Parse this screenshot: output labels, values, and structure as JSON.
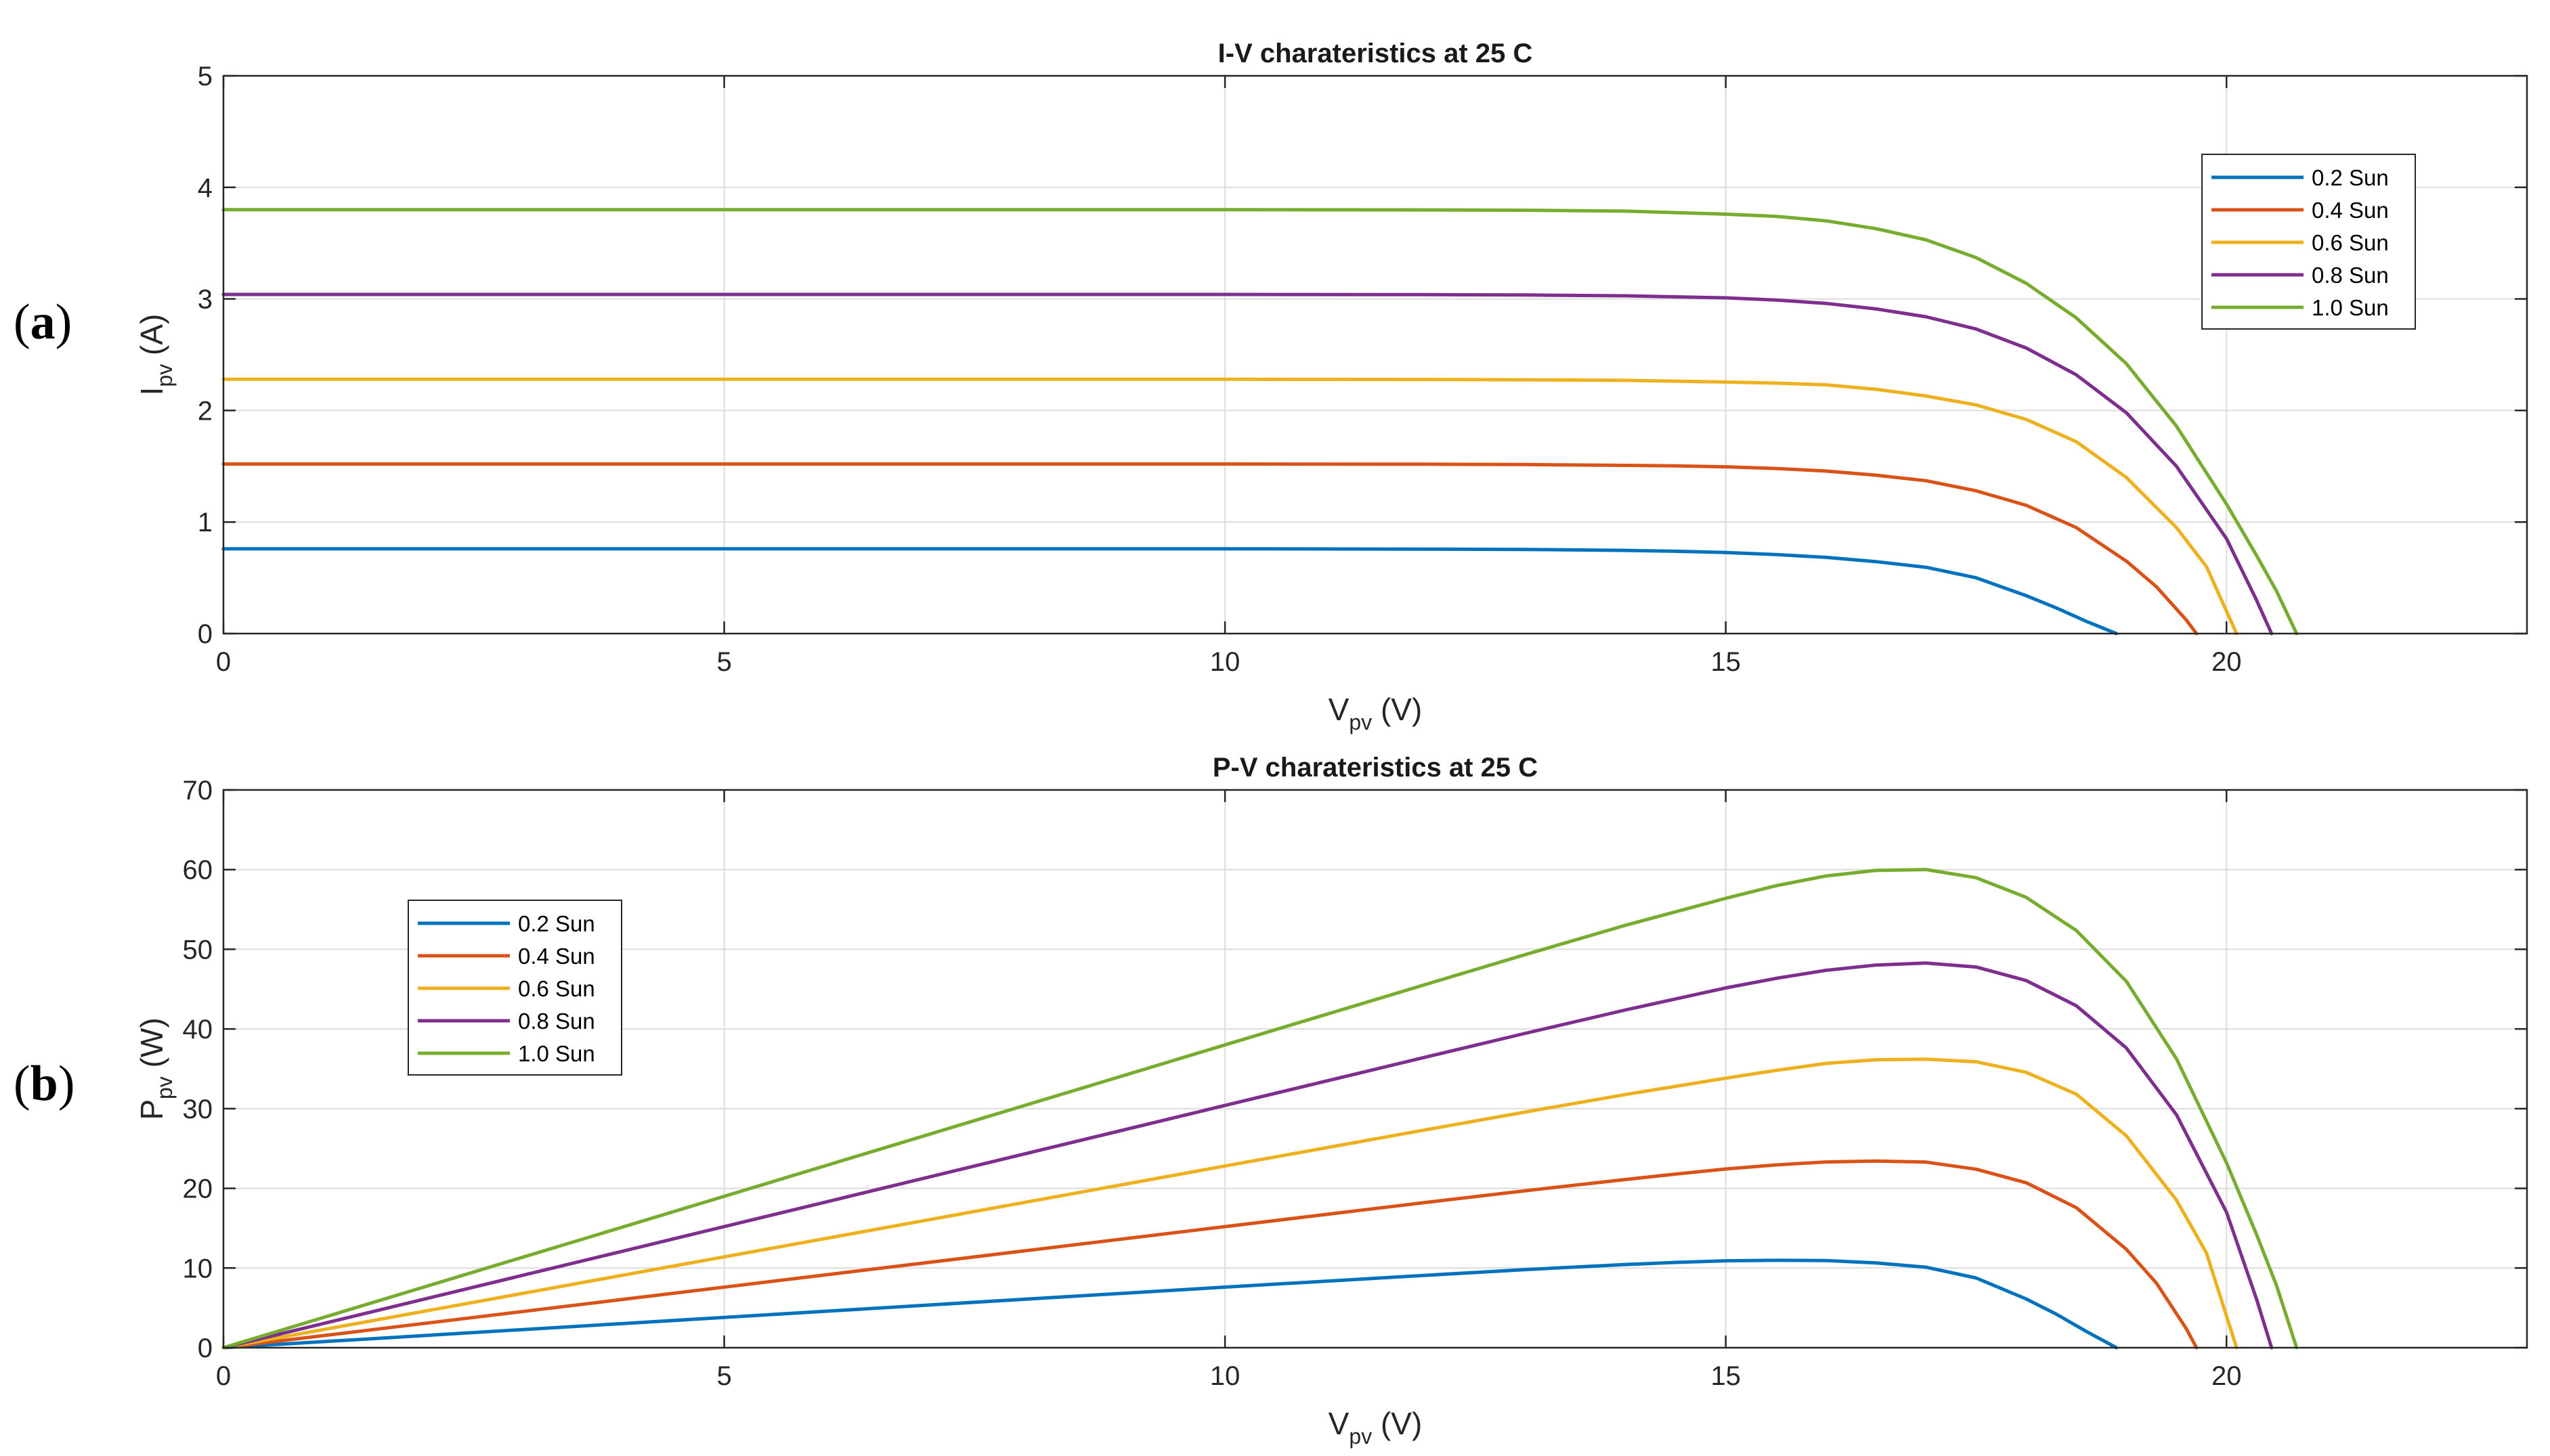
{
  "panels": [
    {
      "label_open": "(",
      "label_letter": "a",
      "label_close": ")"
    },
    {
      "label_open": "(",
      "label_letter": "b",
      "label_close": ")"
    }
  ],
  "chart_data": [
    {
      "type": "line",
      "title": "I-V charateristics at 25 C",
      "xlabel": {
        "main": "V",
        "sub": "pv",
        "unit": "(V)"
      },
      "ylabel": {
        "main": "I",
        "sub": "pv",
        "unit": "(A)"
      },
      "xlim": [
        0,
        23
      ],
      "ylim": [
        0,
        5
      ],
      "xticks": [
        0,
        5,
        10,
        15,
        20
      ],
      "yticks": [
        0,
        1,
        2,
        3,
        4,
        5
      ],
      "grid": true,
      "legend_position": "top-right",
      "series": [
        {
          "name": "0.2 Sun",
          "color": "#0072BD",
          "x": [
            0,
            2,
            4,
            6,
            8,
            10,
            12,
            13,
            14,
            14.5,
            15,
            15.5,
            16,
            16.5,
            17,
            17.5,
            18,
            18.3,
            18.6,
            18.9
          ],
          "y": [
            0.76,
            0.76,
            0.76,
            0.76,
            0.76,
            0.76,
            0.757,
            0.754,
            0.746,
            0.738,
            0.727,
            0.708,
            0.683,
            0.645,
            0.594,
            0.5,
            0.34,
            0.23,
            0.11,
            0.0
          ]
        },
        {
          "name": "0.4 Sun",
          "color": "#D95319",
          "x": [
            0,
            2,
            4,
            6,
            8,
            10,
            12,
            13,
            14,
            14.5,
            15,
            15.5,
            16,
            16.5,
            17,
            17.5,
            18,
            18.5,
            19,
            19.3,
            19.6,
            19.7
          ],
          "y": [
            1.52,
            1.52,
            1.52,
            1.52,
            1.52,
            1.52,
            1.518,
            1.515,
            1.508,
            1.503,
            1.495,
            1.48,
            1.457,
            1.42,
            1.37,
            1.28,
            1.15,
            0.95,
            0.65,
            0.42,
            0.12,
            0.0
          ]
        },
        {
          "name": "0.6 Sun",
          "color": "#EDB120",
          "x": [
            0,
            2,
            4,
            6,
            8,
            10,
            12,
            13,
            14,
            15,
            15.5,
            16,
            16.5,
            17,
            17.5,
            18,
            18.5,
            19,
            19.5,
            19.8,
            20.1
          ],
          "y": [
            2.28,
            2.28,
            2.28,
            2.28,
            2.28,
            2.28,
            2.278,
            2.275,
            2.27,
            2.255,
            2.245,
            2.23,
            2.19,
            2.13,
            2.05,
            1.92,
            1.72,
            1.4,
            0.95,
            0.6,
            0.0
          ]
        },
        {
          "name": "0.8 Sun",
          "color": "#7E2F8E",
          "x": [
            0,
            2,
            4,
            6,
            8,
            10,
            12,
            13,
            14,
            15,
            15.5,
            16,
            16.5,
            17,
            17.5,
            18,
            18.5,
            19,
            19.5,
            20,
            20.3,
            20.45
          ],
          "y": [
            3.04,
            3.04,
            3.04,
            3.04,
            3.04,
            3.04,
            3.038,
            3.035,
            3.028,
            3.01,
            2.99,
            2.96,
            2.91,
            2.84,
            2.73,
            2.56,
            2.32,
            1.98,
            1.5,
            0.85,
            0.3,
            0.0
          ]
        },
        {
          "name": "1.0 Sun",
          "color": "#77AC30",
          "x": [
            0,
            2,
            4,
            6,
            8,
            10,
            12,
            13,
            14,
            15,
            15.5,
            16,
            16.5,
            17,
            17.5,
            18,
            18.5,
            19,
            19.5,
            20,
            20.3,
            20.5,
            20.7
          ],
          "y": [
            3.8,
            3.8,
            3.8,
            3.8,
            3.8,
            3.8,
            3.798,
            3.795,
            3.787,
            3.76,
            3.74,
            3.7,
            3.63,
            3.53,
            3.37,
            3.14,
            2.83,
            2.42,
            1.86,
            1.16,
            0.7,
            0.38,
            0.0
          ]
        }
      ]
    },
    {
      "type": "line",
      "title": "P-V charateristics at 25 C",
      "xlabel": {
        "main": "V",
        "sub": "pv",
        "unit": "(V)"
      },
      "ylabel": {
        "main": "P",
        "sub": "pv",
        "unit": "(W)"
      },
      "xlim": [
        0,
        23
      ],
      "ylim": [
        0,
        70
      ],
      "xticks": [
        0,
        5,
        10,
        15,
        20
      ],
      "yticks": [
        0,
        10,
        20,
        30,
        40,
        50,
        60,
        70
      ],
      "grid": true,
      "legend_position": "top-left",
      "series": [
        {
          "name": "0.2 Sun",
          "color": "#0072BD",
          "x": [
            0,
            2,
            4,
            6,
            8,
            10,
            12,
            13,
            14,
            14.5,
            15,
            15.5,
            16,
            16.5,
            17,
            17.5,
            18,
            18.3,
            18.6,
            18.9
          ],
          "y": [
            0,
            1.52,
            3.04,
            4.56,
            6.08,
            7.6,
            9.08,
            9.8,
            10.44,
            10.7,
            10.91,
            10.97,
            10.93,
            10.64,
            10.1,
            8.75,
            6.12,
            4.21,
            2.05,
            0.0
          ]
        },
        {
          "name": "0.4 Sun",
          "color": "#D95319",
          "x": [
            0,
            2,
            4,
            6,
            8,
            10,
            12,
            13,
            14,
            14.5,
            15,
            15.5,
            16,
            16.5,
            17,
            17.5,
            18,
            18.5,
            19,
            19.3,
            19.6,
            19.7
          ],
          "y": [
            0,
            3.04,
            6.08,
            9.12,
            12.16,
            15.2,
            18.22,
            19.7,
            21.11,
            21.79,
            22.43,
            22.94,
            23.31,
            23.43,
            23.29,
            22.4,
            20.7,
            17.58,
            12.35,
            8.11,
            2.35,
            0.0
          ]
        },
        {
          "name": "0.6 Sun",
          "color": "#EDB120",
          "x": [
            0,
            2,
            4,
            6,
            8,
            10,
            12,
            13,
            14,
            15,
            15.5,
            16,
            16.5,
            17,
            17.5,
            18,
            18.5,
            19,
            19.5,
            19.8,
            20.1
          ],
          "y": [
            0,
            4.56,
            9.12,
            13.68,
            18.24,
            22.8,
            27.34,
            29.58,
            31.78,
            33.83,
            34.8,
            35.68,
            36.14,
            36.21,
            35.88,
            34.56,
            31.82,
            26.6,
            18.53,
            11.88,
            0.0
          ]
        },
        {
          "name": "0.8 Sun",
          "color": "#7E2F8E",
          "x": [
            0,
            2,
            4,
            6,
            8,
            10,
            12,
            13,
            14,
            15,
            15.5,
            16,
            16.5,
            17,
            17.5,
            18,
            18.5,
            19,
            19.5,
            20,
            20.3,
            20.45
          ],
          "y": [
            0,
            6.08,
            12.16,
            18.24,
            24.32,
            30.4,
            36.46,
            39.46,
            42.39,
            45.15,
            46.35,
            47.36,
            48.02,
            48.28,
            47.78,
            46.08,
            42.92,
            37.62,
            29.25,
            17.0,
            6.09,
            0.0
          ]
        },
        {
          "name": "1.0 Sun",
          "color": "#77AC30",
          "x": [
            0,
            2,
            4,
            6,
            8,
            10,
            12,
            13,
            14,
            15,
            15.5,
            16,
            16.5,
            17,
            17.5,
            18,
            18.5,
            19,
            19.5,
            20,
            20.3,
            20.5,
            20.7
          ],
          "y": [
            0,
            7.6,
            15.2,
            22.8,
            30.4,
            38.0,
            45.58,
            49.34,
            53.02,
            56.4,
            57.97,
            59.2,
            59.9,
            60.01,
            58.98,
            56.52,
            52.36,
            45.98,
            36.27,
            23.2,
            14.21,
            7.79,
            0.0
          ]
        }
      ]
    }
  ]
}
